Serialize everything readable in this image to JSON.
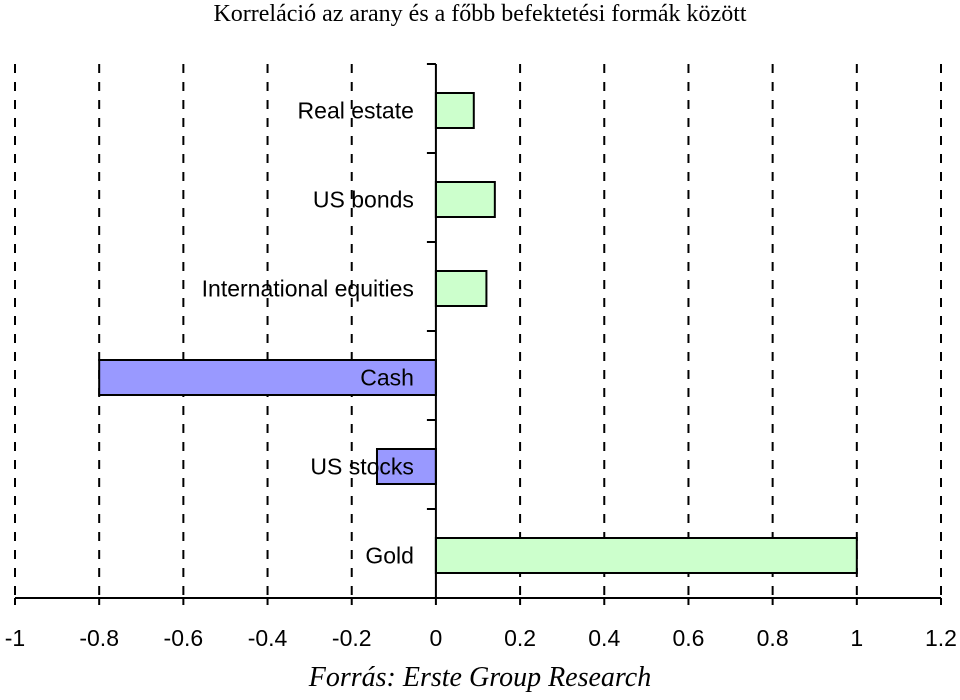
{
  "chart_data": {
    "type": "bar",
    "orientation": "horizontal",
    "title": "Korreláció az arany és a főbb befektetési formák között",
    "categories": [
      "Real estate",
      "US bonds",
      "International equities",
      "Cash",
      "US stocks",
      "Gold"
    ],
    "values": [
      0.09,
      0.14,
      0.12,
      -0.8,
      -0.14,
      1.0
    ],
    "xlim": [
      -1,
      1.2
    ],
    "xticks": [
      "-1",
      "-0.8",
      "-0.6",
      "-0.4",
      "-0.2",
      "0",
      "0.2",
      "0.4",
      "0.6",
      "0.8",
      "1",
      "1.2"
    ],
    "grid": "vertical dashed",
    "colors": {
      "positive": "#ccffcc",
      "negative": "#9999ff",
      "outline": "#000000"
    },
    "source": "Forrás: Erste Group Research"
  }
}
